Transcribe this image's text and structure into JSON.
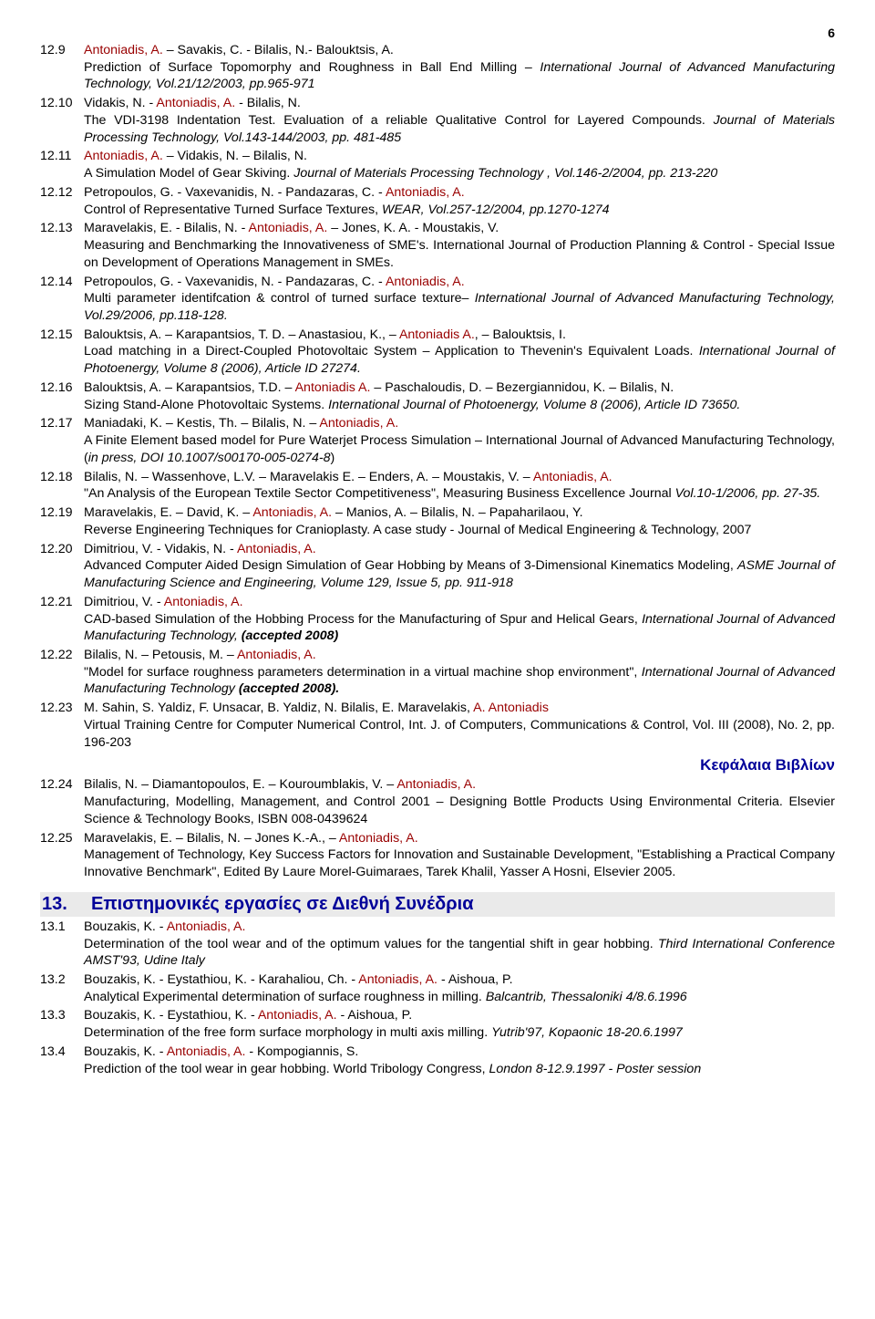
{
  "page_number": "6",
  "entries_12": [
    {
      "num": "12.9",
      "authors": "<span class='red'>Antoniadis, A.</span> – Savakis, C. - Bilalis, N.- Balouktsis, A.",
      "desc": "Prediction of Surface Topomorphy and Roughness in Ball End Milling – <i>International Journal of Advanced Manufacturing Technology, Vol.21/12/2003, pp.965-971</i>"
    },
    {
      "num": "12.10",
      "authors": "Vidakis, N. - <span class='red'>Antoniadis, A.</span> - Bilalis, N.",
      "desc": "The VDI-3198 Indentation Test. Evaluation of a reliable Qualitative Control for Layered Compounds. <i>Journal of Materials Processing Technology, Vol.143-144/2003, pp. 481-485</i>"
    },
    {
      "num": "12.11",
      "authors": "<span class='red'>Antoniadis, A.</span> – Vidakis, N. –  Bilalis, N.",
      "desc": "A Simulation Model of Gear Skiving. <i>Journal of Materials Processing Technology , Vol.146-2/2004, pp. 213-220</i>"
    },
    {
      "num": "12.12",
      "authors": "Petropoulos, G. - Vaxevanidis, N. - Pandazaras, C. - <span class='red'>Antoniadis, A.</span>",
      "desc": "Control of Representative Turned Surface Textures, <i>WEAR, Vol.257-12/2004, pp.1270-1274</i>"
    },
    {
      "num": "12.13",
      "authors": "Maravelakis, E. - Bilalis, N. - <span class='red'>Antoniadis, A.</span> – Jones, K. A. - Moustakis, V.",
      "desc": "Measuring and Benchmarking the Innovativeness of SME's. International Journal of Production Planning & Control - Special Issue on Development of Operations Management in SMEs."
    },
    {
      "num": "12.14",
      "authors": "Petropoulos, G. - Vaxevanidis, N. - Pandazaras, C. - <span class='red'>Antoniadis, A.</span>",
      "desc": "Multi parameter identifcation & control of turned surface texture– <i>International Journal of Advanced Manufacturing Technology, Vol.29/2006, pp.118-128.</i>"
    },
    {
      "num": "12.15",
      "authors": "Balouktsis, A. – Karapantsios, T. D. – Anastasiou, K., – <span class='red'>Antoniadis A.</span>, – Balouktsis, I.",
      "desc": "Load matching in a Direct-Coupled Photovoltaic System – Application to Thevenin's Equivalent Loads. <i>International Journal of Photoenergy, Volume 8 (2006), Article ID 27274.</i>"
    },
    {
      "num": "12.16",
      "authors": "Balouktsis, A. – Karapantsios, T.D. – <span class='red'>Antoniadis A.</span> – Paschaloudis, D. – Bezergiannidou, K. – Bilalis, N.",
      "desc": "Sizing Stand-Alone Photovoltaic Systems. <i>International Journal of Photoenergy, Volume 8 (2006), Article ID 73650.</i>"
    },
    {
      "num": "12.17",
      "authors": "Maniadaki, K. – Kestis, Th. – Bilalis, N. – <span class='red'>Antoniadis, A.</span>",
      "desc": "A Finite Element based model for Pure Waterjet Process Simulation – International Journal of Advanced Manufacturing Technology, (<i>in press, DOI 10.1007/s00170-005-0274-8</i>)"
    },
    {
      "num": "12.18",
      "authors": "Bilalis, N. – Wassenhove, L.V. – Maravelakis E. – Enders, A. – Moustakis, V. – <span class='red'>Antoniadis, A.</span>",
      "desc": "\"An Analysis of the European Textile Sector Competitiveness\", Measuring Business Excellence Journal <i>Vol.10-1/2006, pp. 27-35.</i>"
    },
    {
      "num": "12.19",
      "authors": "Maravelakis, E. – David, K. – <span class='red'>Antoniadis, A.</span> – Manios, A. – Bilalis, N. – Papaharilaou, Y.",
      "desc": "Reverse Engineering Techniques for Cranioplasty. A case study - Journal of Medical Engineering & Technology, 2007"
    },
    {
      "num": "12.20",
      "authors": "Dimitriou, V. - Vidakis, N. - <span class='red'>Antoniadis, A.</span>",
      "desc": "Advanced Computer Aided Design Simulation of Gear Hobbing by Means of 3-Dimensional Kinematics Modeling, <i>ASME Journal of Manufacturing Science and Engineering, Volume 129, Issue 5, pp. 911-918</i>"
    },
    {
      "num": "12.21",
      "authors": "Dimitriou, V. - <span class='red'>Antoniadis, A.</span>",
      "desc": "CAD-based Simulation of the Hobbing Process for the Manufacturing of Spur and Helical Gears, <i>International Journal of Advanced Manufacturing Technology, <b>(accepted 2008)</b></i>"
    },
    {
      "num": "12.22",
      "authors": "Bilalis, N. – Petousis, M. – <span class='red'>Antoniadis, A.</span>",
      "desc": "\"Model for surface roughness parameters determination in a virtual machine shop environment\", <i>International Journal of Advanced Manufacturing Technology </i><b><i>(accepted 2008).</i></b>"
    },
    {
      "num": "12.23",
      "authors": "M. Sahin, S. Yaldiz, F. Unsacar, B. Yaldiz, N. Bilalis, E. Maravelakis, <span class='red'>A. Antoniadis</span>",
      "desc": "Virtual Training Centre for Computer Numerical Control, Int. J. of Computers, Communications & Control, Vol. III (2008), No. 2, pp. 196-203"
    }
  ],
  "chapters_label": "Κεφάλαια Βιβλίων",
  "entries_12b": [
    {
      "num": "12.24",
      "authors": "Bilalis, N. – Diamantopoulos, E. – Kouroumblakis, V. – <span class='red'>Antoniadis, A.</span>",
      "desc": "Manufacturing, Modelling, Management, and Control 2001 – Designing Bottle Products Using Environmental Criteria. Elsevier Science & Technology Books, ISBN 008-0439624"
    },
    {
      "num": "12.25",
      "authors": "Maravelakis, E. – Bilalis, N. – Jones K.-A., – <span class='red'>Antoniadis, A.</span>",
      "desc": "Management of Technology, Key Success Factors for Innovation and Sustainable Development, \"Establishing a Practical Company Innovative Benchmark\", Edited By Laure Morel-Guimaraes, Tarek Khalil, Yasser A Hosni, Elsevier 2005."
    }
  ],
  "section13": {
    "num": "13.",
    "title": "Επιστημονικές εργασίες σε Διεθνή Συνέδρια"
  },
  "entries_13": [
    {
      "num": "13.1",
      "authors": "Bouzakis, K. - <span class='red'>Antoniadis, A.</span>",
      "desc": "Determination of the tool wear and of the optimum values for the tangential shift in gear hobbing. <i>Third International Conference AMST'93, Udine Italy</i>"
    },
    {
      "num": "13.2",
      "authors": "Bouzakis, K. - Eystathiou, K. - Karahaliou, Ch. - <span class='red'>Antoniadis, A.</span> - Aishoua, P.",
      "desc": "Analytical Experimental determination of surface roughness in milling. <i>Balcantrib, Thessaloniki 4/8.6.1996</i>"
    },
    {
      "num": "13.3",
      "authors": "Bouzakis, K. - Eystathiou, K. - <span class='red'>Antoniadis, A.</span> - Aishoua, P.",
      "desc": "Determination of the free form surface morphology in multi axis milling. <i>Yutrib'97, Kopaonic 18-20.6.1997</i>"
    },
    {
      "num": "13.4",
      "authors": "Bouzakis, K. - <span class='red'>Antoniadis, A.</span> - Kompogiannis, S.",
      "desc": "Prediction of the tool wear in gear hobbing. World Tribology Congress, <i>London 8-12.9.1997 - Poster session</i>"
    }
  ]
}
